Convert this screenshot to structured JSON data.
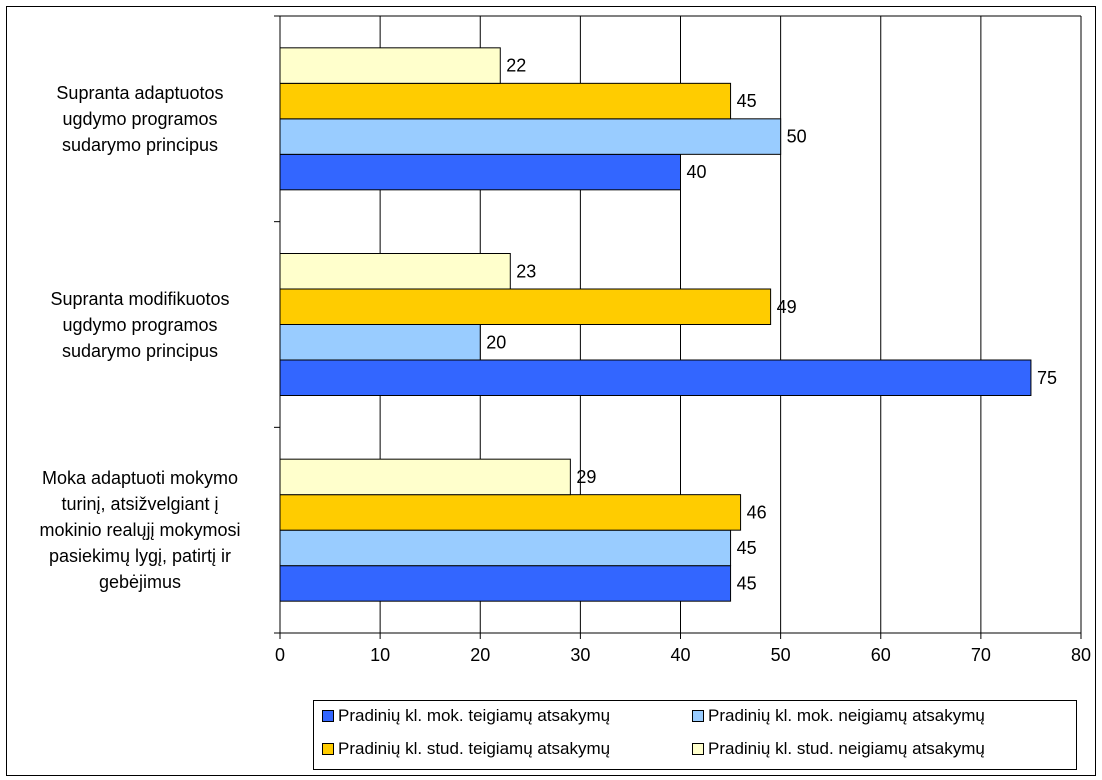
{
  "chart_data": {
    "type": "bar",
    "orientation": "horizontal",
    "categories": [
      "Supranta adaptuotos ugdymo programos sudarymo principus",
      "Supranta modifikuotos ugdymo programos sudarymo principus",
      "Moka adaptuoti mokymo turinį, atsižvelgiant į mokinio realųjį mokymosi pasiekimų lygį, patirtį ir gebėjimus"
    ],
    "category_lines": [
      [
        "Supranta adaptuotos",
        "ugdymo programos",
        "sudarymo principus"
      ],
      [
        "Supranta modifikuotos",
        "ugdymo programos",
        "sudarymo principus"
      ],
      [
        "Moka adaptuoti mokymo",
        "turinį, atsižvelgiant į",
        "mokinio realųjį mokymosi",
        "pasiekimų lygį, patirtį ir",
        "gebėjimus"
      ]
    ],
    "series": [
      {
        "name": "Pradinių kl. mok. teigiamų atsakymų",
        "color": "#3366ff",
        "values": [
          40,
          75,
          45
        ]
      },
      {
        "name": "Pradinių kl. mok. neigiamų atsakymų",
        "color": "#99ccff",
        "values": [
          50,
          20,
          45
        ]
      },
      {
        "name": "Pradinių kl. stud. teigiamų atsakymų",
        "color": "#ffcc00",
        "values": [
          45,
          49,
          46
        ]
      },
      {
        "name": "Pradinių kl. stud. neigiamų atsakymų",
        "color": "#ffffcc",
        "values": [
          22,
          23,
          29
        ]
      }
    ],
    "xlim": [
      0,
      80
    ],
    "xticks": [
      "0",
      "10",
      "20",
      "30",
      "40",
      "50",
      "60",
      "70",
      "80"
    ],
    "grid": "vertical",
    "legend_position": "bottom"
  }
}
